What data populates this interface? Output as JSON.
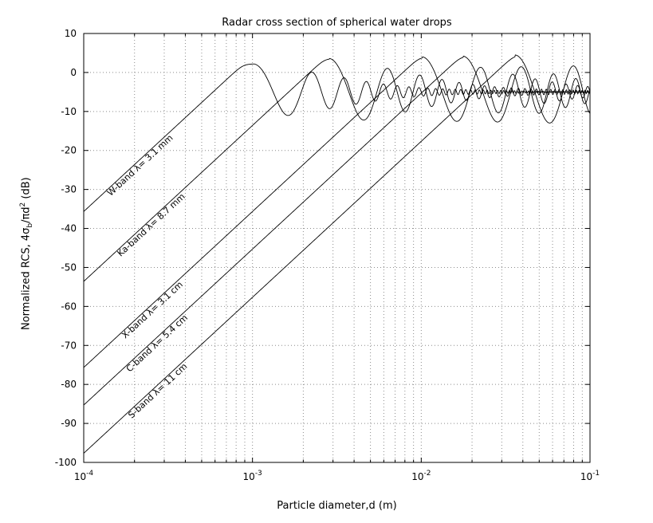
{
  "figure": {
    "background": "#ffffff"
  },
  "ylabel_parts": {
    "pre": "Normalized RCS, 4",
    "sigma": "σ",
    "sub": "b",
    "mid": "/πd",
    "sup": "2",
    "post": " (dB)"
  },
  "chart_data": {
    "type": "line",
    "title": "Radar cross section of spherical water drops",
    "xlabel": "Particle diameter,d (m)",
    "ylabel": "Normalized RCS, 4σ_b/πd^2 (dB)",
    "x_scale": "log",
    "xlim": [
      0.0001,
      0.1
    ],
    "ylim": [
      -100,
      10
    ],
    "x_ticks": [
      {
        "label": "10^-4",
        "value": 0.0001
      },
      {
        "label": "10^-3",
        "value": 0.001
      },
      {
        "label": "10^-2",
        "value": 0.01
      },
      {
        "label": "10^-1",
        "value": 0.1
      }
    ],
    "y_ticks": [
      10,
      0,
      -10,
      -20,
      -30,
      -40,
      -50,
      -60,
      -70,
      -80,
      -90,
      -100
    ],
    "grid": {
      "style": "dotted",
      "x_minor": true,
      "color": "#8c8c8c"
    },
    "axis_color": "#000000",
    "line_color": "#000000",
    "model": {
      "rayleigh_intercept_dB": 24,
      "rayleigh_slope_dB_per_decade": 40,
      "softmin_k": 6,
      "first_peak_u": 1.03,
      "osc_omega_per_u": 5.0,
      "amp_decay_fast_u": 3.0,
      "amp_decay_slow_u": 30,
      "amp_fast_weight": 0.85,
      "amp_slow_weight": 0.15,
      "asymptote_dB": -5
    },
    "series": [
      {
        "name": "W-band",
        "label": "W-band λ= 3.1 mm",
        "wavelength_m": 0.0031,
        "peak_dB": 2.2,
        "label_d": 0.000135,
        "key_points": [
          [
            0.0001,
            -36
          ],
          [
            0.00102,
            2.2
          ],
          [
            0.0016,
            -12
          ],
          [
            0.1,
            -5
          ]
        ]
      },
      {
        "name": "Ka-band",
        "label": "Ka-band λ= 8.7 mm",
        "wavelength_m": 0.0087,
        "peak_dB": 3.6,
        "label_d": 0.000155,
        "key_points": [
          [
            0.0001,
            -53
          ],
          [
            0.00285,
            3.6
          ],
          [
            0.0045,
            -12
          ],
          [
            0.1,
            -5
          ]
        ]
      },
      {
        "name": "X-band",
        "label": "X-band λ= 3.1 cm",
        "wavelength_m": 0.031,
        "peak_dB": 4.0,
        "label_d": 0.000165,
        "key_points": [
          [
            0.0001,
            -75
          ],
          [
            0.0102,
            4.0
          ],
          [
            0.016,
            -12
          ],
          [
            0.1,
            -5.4
          ]
        ]
      },
      {
        "name": "C-band",
        "label": "C-band λ= 5.4 cm",
        "wavelength_m": 0.054,
        "peak_dB": 4.2,
        "label_d": 0.000175,
        "key_points": [
          [
            0.0001,
            -84
          ],
          [
            0.0177,
            4.2
          ],
          [
            0.028,
            -12
          ],
          [
            0.1,
            -6
          ]
        ]
      },
      {
        "name": "S-band",
        "label": "S-band λ= 11 cm",
        "wavelength_m": 0.11,
        "peak_dB": 4.5,
        "label_d": 0.00018,
        "key_points": [
          [
            0.0001,
            -96
          ],
          [
            0.0361,
            4.5
          ],
          [
            0.058,
            -12
          ],
          [
            0.1,
            -9
          ]
        ]
      }
    ]
  }
}
